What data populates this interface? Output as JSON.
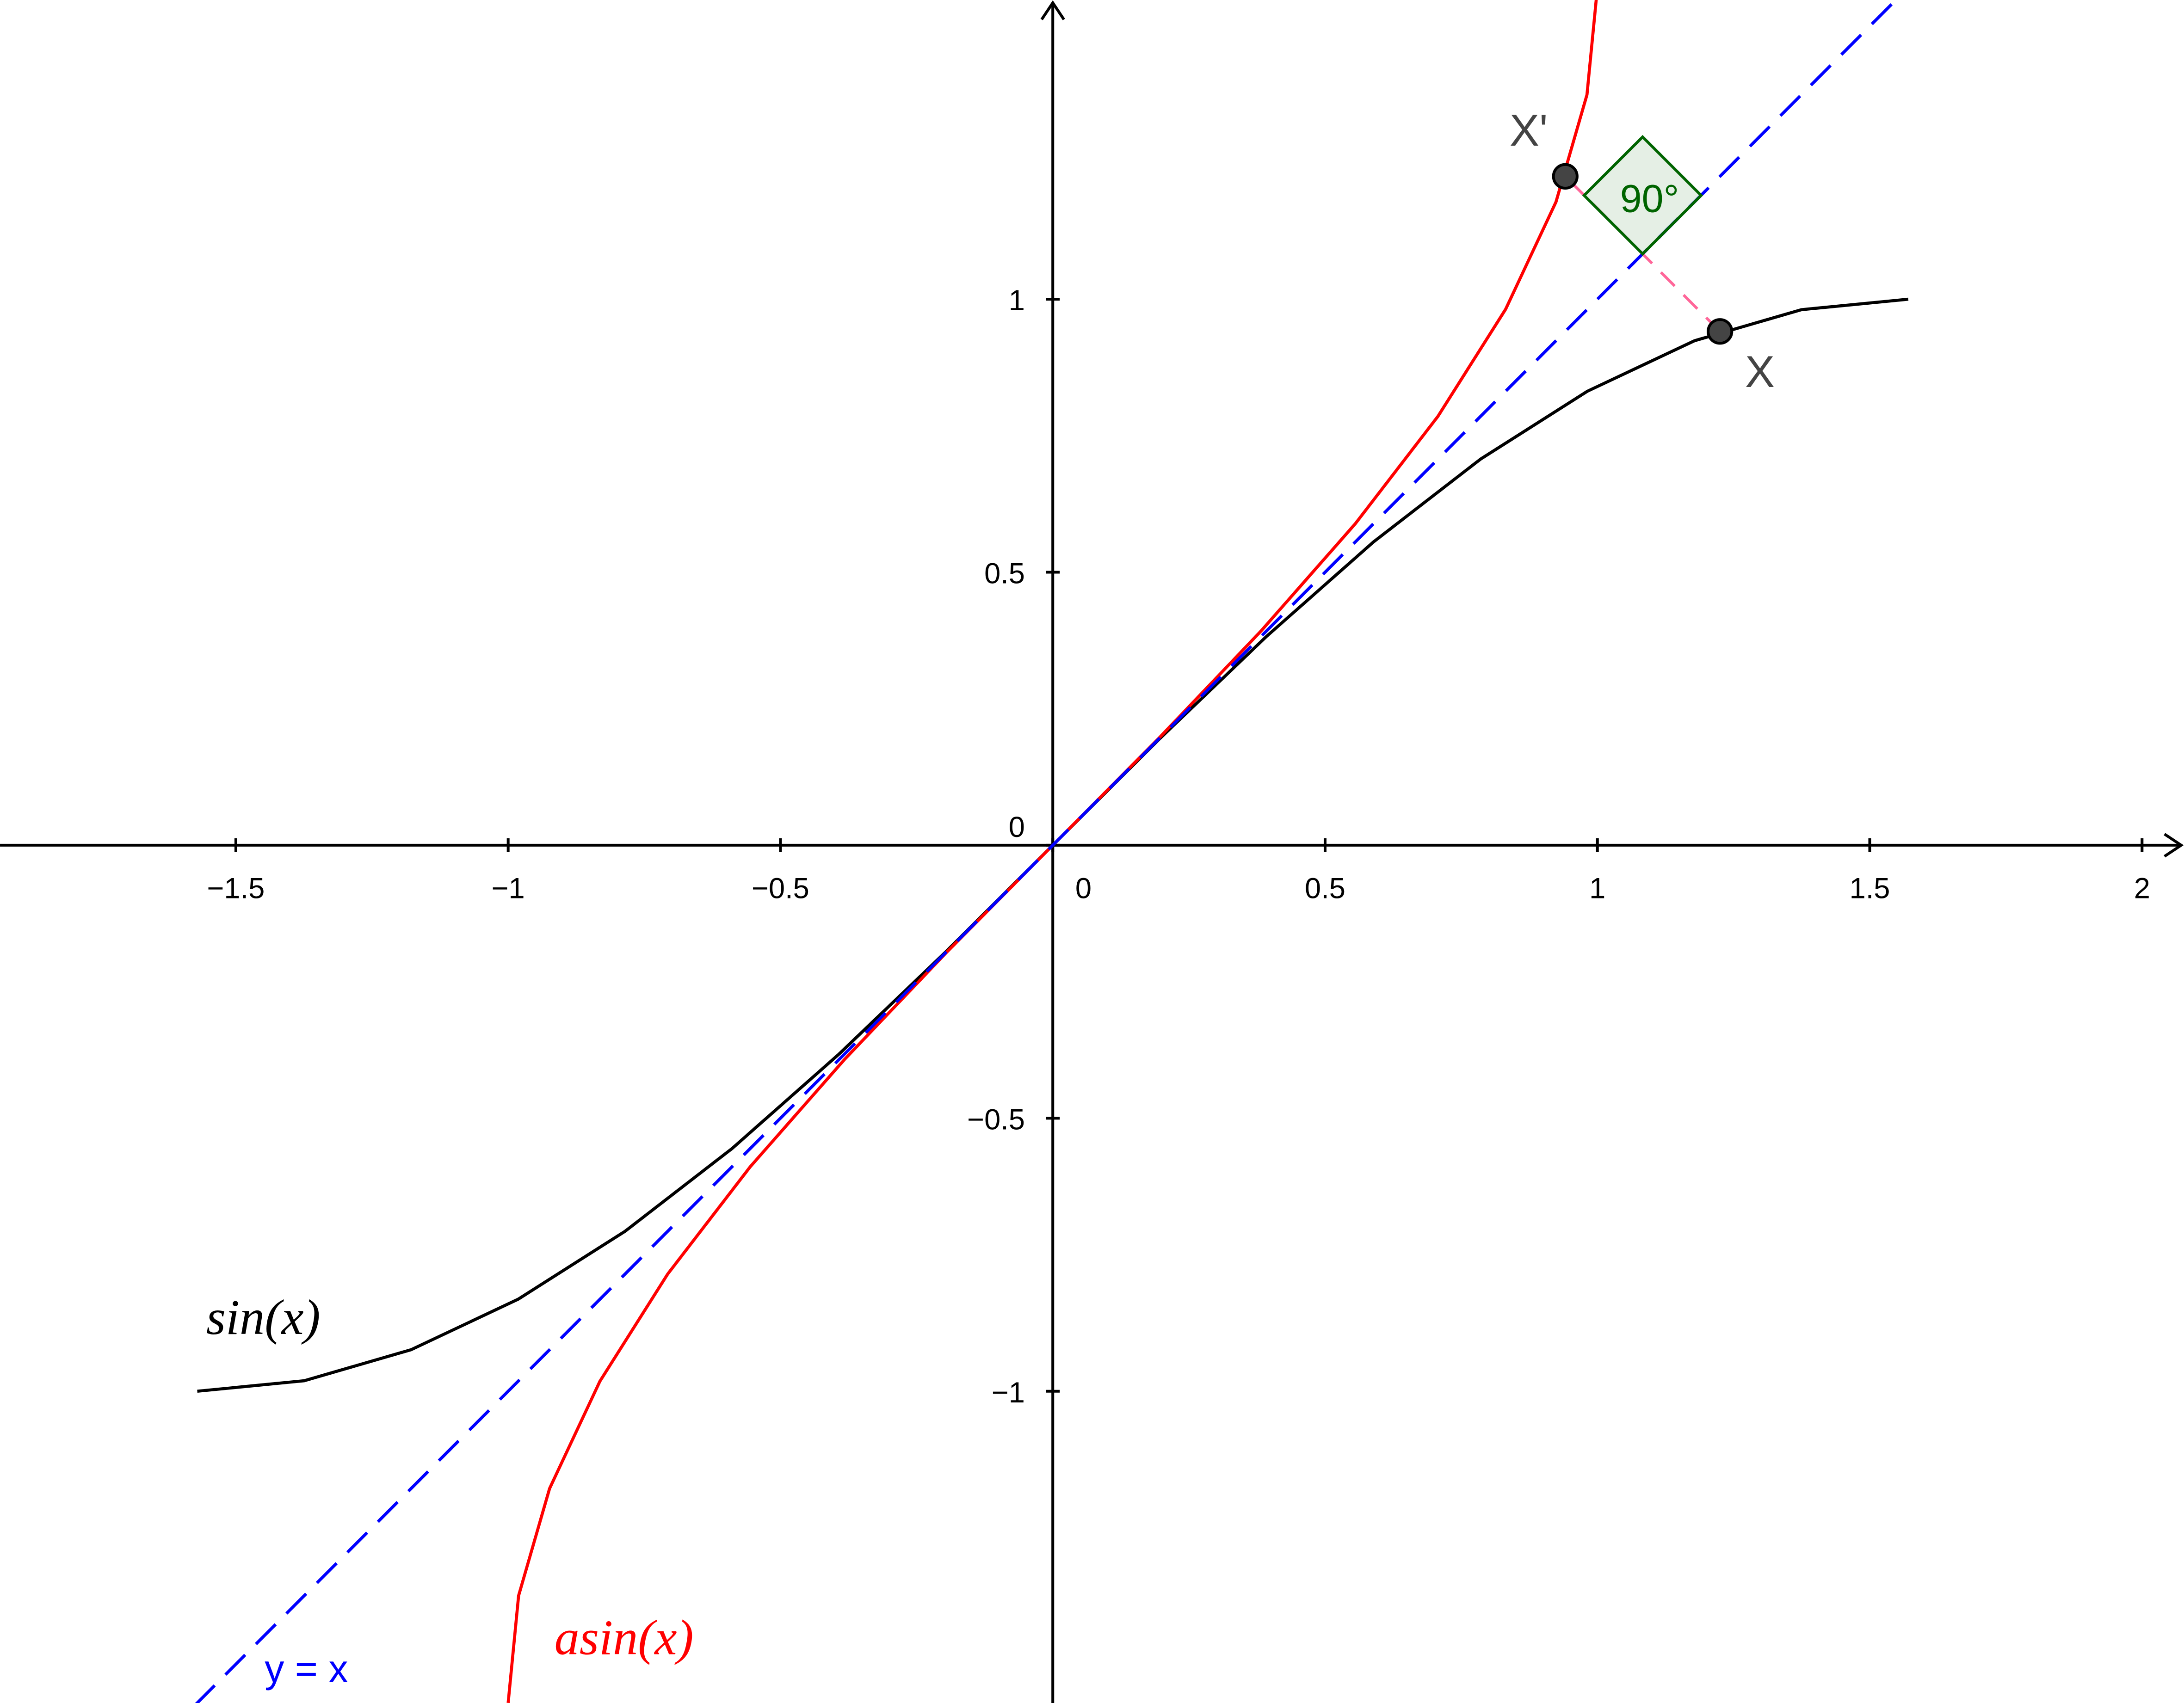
{
  "chart_data": {
    "type": "line",
    "xlim": [
      -1.933,
      2.077
    ],
    "ylim": [
      -1.571,
      1.548
    ],
    "xticks": [
      {
        "value": -1.5,
        "label": "−1.5"
      },
      {
        "value": -1,
        "label": "−1"
      },
      {
        "value": -0.5,
        "label": "−0.5"
      },
      0,
      0.5,
      1,
      1.5,
      2
    ],
    "yticks": [
      {
        "value": -1,
        "label": "−1"
      },
      {
        "value": -0.5,
        "label": "−0.5"
      },
      0,
      0.5,
      1
    ],
    "series": [
      {
        "name": "sin(x)",
        "color": "#000000",
        "x": [
          -1.5708,
          -1.3744,
          -1.1781,
          -0.9817,
          -0.7854,
          -0.589,
          -0.3927,
          -0.1963,
          0,
          0.1963,
          0.3927,
          0.589,
          0.7854,
          0.9817,
          1.1781,
          1.3744,
          1.5708
        ],
        "values": [
          -1,
          -0.9808,
          -0.9239,
          -0.8315,
          -0.7071,
          -0.5556,
          -0.3827,
          -0.1951,
          0,
          0.1951,
          0.3827,
          0.5556,
          0.7071,
          0.8315,
          0.9239,
          0.9808,
          1
        ]
      },
      {
        "name": "asin(x)",
        "color": "#ff0000",
        "x": [
          -1,
          -0.9808,
          -0.9239,
          -0.8315,
          -0.7071,
          -0.5556,
          -0.3827,
          -0.1951,
          0,
          0.1951,
          0.3827,
          0.5556,
          0.7071,
          0.8315,
          0.9239,
          0.9808,
          1
        ],
        "values": [
          -1.5708,
          -1.3744,
          -1.1781,
          -0.9817,
          -0.7854,
          -0.589,
          -0.3927,
          -0.1963,
          0,
          0.1963,
          0.3927,
          0.589,
          0.7854,
          0.9817,
          1.1781,
          1.3744,
          1.5708
        ]
      },
      {
        "name": "y = x",
        "color": "#0000ff",
        "dashed": true,
        "x": [
          -1.575,
          1.565
        ],
        "values": [
          -1.575,
          1.565
        ]
      }
    ],
    "points": [
      {
        "name": "X",
        "x": 1.225,
        "y": 0.941
      },
      {
        "name": "X'",
        "x": 0.941,
        "y": 1.225
      }
    ],
    "angle_label": "90°"
  }
}
